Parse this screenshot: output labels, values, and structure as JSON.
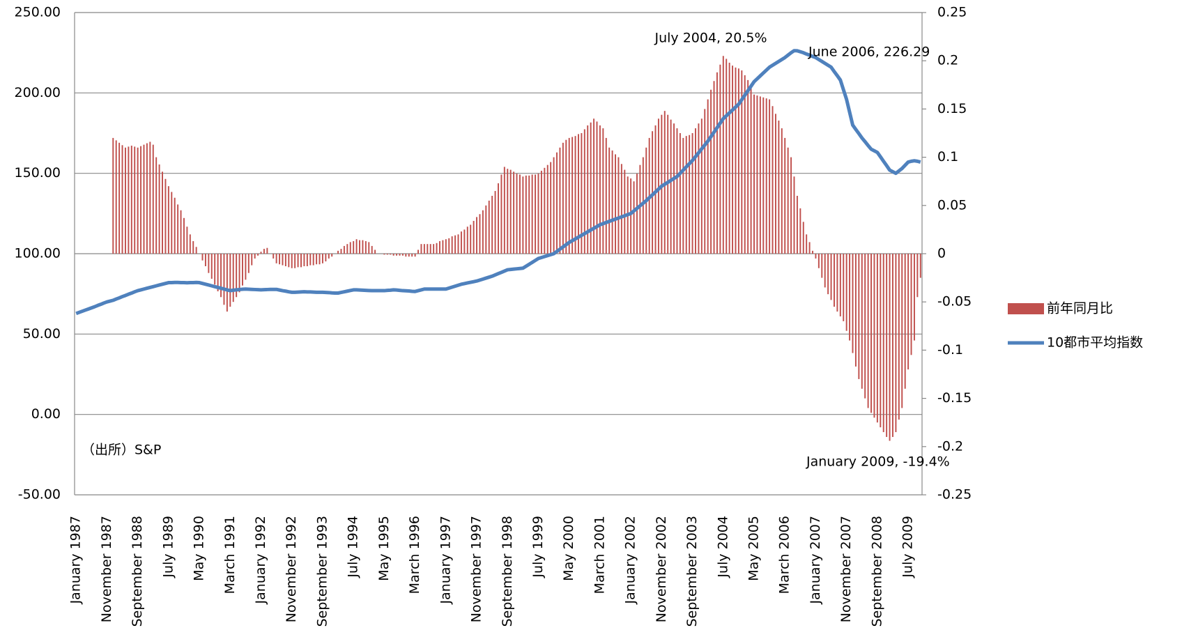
{
  "chart_data": {
    "type": "bar_line",
    "categories": [
      "January 1987",
      null,
      null,
      null,
      null,
      null,
      null,
      null,
      null,
      null,
      "November 1987",
      null,
      null,
      null,
      null,
      null,
      null,
      null,
      null,
      null,
      "September 1988",
      null,
      null,
      null,
      null,
      null,
      null,
      null,
      null,
      null,
      "July 1989",
      null,
      null,
      null,
      null,
      null,
      null,
      null,
      null,
      null,
      "May 1990",
      null,
      null,
      null,
      null,
      null,
      null,
      null,
      null,
      null,
      "March 1991",
      null,
      null,
      null,
      null,
      null,
      null,
      null,
      null,
      null,
      "January 1992",
      null,
      null,
      null,
      null,
      null,
      null,
      null,
      null,
      null,
      "November 1992",
      null,
      null,
      null,
      null,
      null,
      null,
      null,
      null,
      null,
      "September 1993",
      null,
      null,
      null,
      null,
      null,
      null,
      null,
      null,
      null,
      "July 1994",
      null,
      null,
      null,
      null,
      null,
      null,
      null,
      null,
      null,
      "May 1995",
      null,
      null,
      null,
      null,
      null,
      null,
      null,
      null,
      null,
      "March 1996",
      null,
      null,
      null,
      null,
      null,
      null,
      null,
      null,
      null,
      "January 1997",
      null,
      null,
      null,
      null,
      null,
      null,
      null,
      null,
      null,
      "November 1997",
      null,
      null,
      null,
      null,
      null,
      null,
      null,
      null,
      null,
      "September 1998",
      null,
      null,
      null,
      null,
      null,
      null,
      null,
      null,
      null,
      "July 1999",
      null,
      null,
      null,
      null,
      null,
      null,
      null,
      null,
      null,
      "May 2000",
      null,
      null,
      null,
      null,
      null,
      null,
      null,
      null,
      null,
      "March 2001",
      null,
      null,
      null,
      null,
      null,
      null,
      null,
      null,
      null,
      "January 2002",
      null,
      null,
      null,
      null,
      null,
      null,
      null,
      null,
      null,
      "November 2002",
      null,
      null,
      null,
      null,
      null,
      null,
      null,
      null,
      null,
      "September 2003",
      null,
      null,
      null,
      null,
      null,
      null,
      null,
      null,
      null,
      "July 2004",
      null,
      null,
      null,
      null,
      null,
      null,
      null,
      null,
      null,
      "May 2005",
      null,
      null,
      null,
      null,
      null,
      null,
      null,
      null,
      null,
      "March 2006",
      null,
      null,
      null,
      null,
      null,
      null,
      null,
      null,
      null,
      "January 2007",
      null,
      null,
      null,
      null,
      null,
      null,
      null,
      null,
      null,
      "November 2007",
      null,
      null,
      null,
      null,
      null,
      null,
      null,
      null,
      null,
      "September 2008",
      null,
      null,
      null,
      null,
      null,
      null,
      null,
      null,
      null,
      "July 2009",
      null,
      null,
      null,
      null
    ],
    "series": [
      {
        "name": "前年同月比",
        "color": "#c0504d",
        "type": "bar",
        "axis": "y2",
        "values": [
          null,
          null,
          null,
          null,
          null,
          null,
          null,
          null,
          null,
          null,
          null,
          null,
          0.12,
          0.1175,
          0.115,
          0.1125,
          0.11,
          0.111,
          0.112,
          0.111,
          0.11,
          0.1115,
          0.113,
          0.1145,
          0.116,
          0.113,
          0.1,
          0.0925,
          0.085,
          0.0775,
          0.07,
          0.064,
          0.058,
          0.051,
          0.045,
          0.037,
          0.028,
          0.02,
          0.013,
          0.007,
          0.0,
          -0.007,
          -0.013,
          -0.02,
          -0.026,
          -0.032,
          -0.039,
          -0.045,
          -0.053,
          -0.06,
          -0.055,
          -0.05,
          -0.045,
          -0.04,
          -0.033,
          -0.027,
          -0.02,
          -0.012,
          -0.005,
          -0.002,
          0.002,
          0.005,
          0.006,
          0.0,
          -0.005,
          -0.01,
          -0.011,
          -0.012,
          -0.013,
          -0.014,
          -0.015,
          -0.015,
          -0.014,
          -0.014,
          -0.013,
          -0.013,
          -0.012,
          -0.012,
          -0.011,
          -0.011,
          -0.01,
          -0.008,
          -0.005,
          -0.003,
          0.0,
          0.003,
          0.005,
          0.008,
          0.01,
          0.012,
          0.013,
          0.015,
          0.014,
          0.014,
          0.013,
          0.012,
          0.008,
          0.004,
          0.0,
          0.0,
          -0.001,
          -0.001,
          -0.001,
          -0.002,
          -0.002,
          -0.002,
          -0.002,
          -0.003,
          -0.003,
          -0.003,
          -0.003,
          0.004,
          0.01,
          0.01,
          0.01,
          0.01,
          0.01,
          0.011,
          0.013,
          0.014,
          0.015,
          0.016,
          0.018,
          0.019,
          0.02,
          0.023,
          0.025,
          0.028,
          0.03,
          0.034,
          0.038,
          0.041,
          0.045,
          0.05,
          0.055,
          0.06,
          0.065,
          0.073,
          0.082,
          0.09,
          0.088,
          0.087,
          0.085,
          0.083,
          0.082,
          0.08,
          0.081,
          0.081,
          0.082,
          0.082,
          0.083,
          0.086,
          0.089,
          0.092,
          0.095,
          0.1,
          0.105,
          0.11,
          0.115,
          0.118,
          0.12,
          0.121,
          0.122,
          0.124,
          0.125,
          0.129,
          0.133,
          0.136,
          0.14,
          0.137,
          0.133,
          0.13,
          0.12,
          0.11,
          0.107,
          0.103,
          0.1,
          0.093,
          0.087,
          0.08,
          0.078,
          0.075,
          0.083,
          0.092,
          0.1,
          0.11,
          0.12,
          0.127,
          0.133,
          0.14,
          0.144,
          0.148,
          0.144,
          0.139,
          0.135,
          0.13,
          0.125,
          0.12,
          0.122,
          0.123,
          0.125,
          0.13,
          0.135,
          0.14,
          0.15,
          0.16,
          0.17,
          0.179,
          0.188,
          0.196,
          0.205,
          0.202,
          0.198,
          0.195,
          0.193,
          0.192,
          0.19,
          0.185,
          0.18,
          0.172,
          0.165,
          0.164,
          0.163,
          0.162,
          0.161,
          0.16,
          0.153,
          0.145,
          0.138,
          0.13,
          0.12,
          0.11,
          0.1,
          0.08,
          0.06,
          0.047,
          0.033,
          0.02,
          0.012,
          0.003,
          -0.005,
          -0.015,
          -0.025,
          -0.035,
          -0.042,
          -0.048,
          -0.055,
          -0.06,
          -0.065,
          -0.07,
          -0.08,
          -0.09,
          -0.103,
          -0.117,
          -0.13,
          -0.14,
          -0.15,
          -0.16,
          -0.165,
          -0.17,
          -0.175,
          -0.18,
          -0.185,
          -0.19,
          -0.194,
          -0.19,
          -0.185,
          -0.172,
          -0.16,
          -0.14,
          -0.12,
          -0.105,
          -0.09,
          -0.045,
          -0.025
        ]
      },
      {
        "name": "10都市平均指数",
        "color": "#4f81bd",
        "type": "line",
        "axis": "y",
        "values": [
          62.8,
          63.5,
          64.2,
          64.9,
          65.6,
          66.3,
          67.0,
          67.8,
          68.5,
          69.3,
          70.0,
          70.5,
          71.0,
          71.8,
          72.5,
          73.3,
          74.0,
          74.8,
          75.5,
          76.3,
          77.0,
          77.5,
          78.0,
          78.5,
          79.0,
          79.5,
          80.0,
          80.5,
          81.0,
          81.5,
          82.0,
          82.0,
          82.1,
          82.1,
          82.0,
          82.0,
          81.9,
          82.0,
          82.0,
          82.1,
          82.0,
          81.5,
          81.0,
          80.5,
          80.0,
          79.5,
          79.0,
          78.5,
          78.0,
          77.5,
          77.0,
          77.3,
          77.5,
          77.7,
          77.9,
          78.0,
          77.9,
          77.8,
          77.7,
          77.6,
          77.5,
          77.6,
          77.7,
          77.8,
          77.8,
          77.8,
          77.4,
          77.0,
          76.7,
          76.3,
          76.0,
          76.0,
          76.1,
          76.2,
          76.3,
          76.2,
          76.2,
          76.1,
          76.0,
          76.0,
          76.0,
          75.9,
          75.8,
          75.6,
          75.5,
          75.5,
          75.9,
          76.3,
          76.7,
          77.1,
          77.5,
          77.5,
          77.4,
          77.3,
          77.2,
          77.1,
          77.0,
          77.0,
          77.0,
          77.0,
          77.0,
          77.2,
          77.3,
          77.5,
          77.4,
          77.2,
          77.0,
          76.9,
          76.8,
          76.6,
          76.5,
          77.0,
          77.5,
          78.0,
          78.0,
          78.0,
          78.0,
          78.0,
          78.0,
          78.0,
          78.0,
          78.6,
          79.2,
          79.8,
          80.4,
          81.0,
          81.4,
          81.8,
          82.2,
          82.6,
          83.0,
          83.6,
          84.2,
          84.8,
          85.4,
          86.0,
          86.8,
          87.6,
          88.4,
          89.2,
          90.0,
          90.2,
          90.4,
          90.6,
          90.8,
          91.0,
          92.2,
          93.4,
          94.6,
          95.8,
          97.0,
          97.6,
          98.2,
          98.8,
          99.4,
          100.0,
          101.4,
          102.8,
          104.2,
          105.6,
          107.0,
          108.1,
          109.2,
          110.3,
          111.4,
          112.5,
          113.6,
          114.7,
          115.8,
          116.9,
          118.0,
          118.7,
          119.4,
          120.1,
          120.8,
          121.5,
          122.2,
          122.9,
          123.6,
          124.3,
          125.0,
          126.6,
          128.2,
          129.8,
          131.4,
          133.0,
          134.8,
          136.6,
          138.4,
          140.2,
          142.0,
          143.2,
          144.4,
          145.6,
          146.8,
          148.0,
          150.0,
          152.0,
          154.0,
          156.0,
          158.0,
          160.4,
          162.8,
          165.2,
          167.6,
          170.0,
          172.8,
          175.6,
          178.4,
          181.2,
          184.0,
          185.8,
          187.6,
          189.4,
          191.2,
          193.0,
          195.8,
          198.6,
          201.4,
          204.2,
          207.0,
          208.8,
          210.6,
          212.4,
          214.2,
          216.0,
          217.2,
          218.4,
          219.6,
          220.8,
          222.0,
          223.5,
          225.0,
          226.29,
          226.2,
          225.6,
          225.0,
          224.2,
          223.5,
          222.7,
          222.0,
          220.8,
          219.6,
          218.4,
          217.2,
          216.0,
          213.3,
          210.7,
          208.0,
          202.0,
          196.0,
          188.0,
          180.0,
          177.3,
          174.7,
          172.0,
          169.7,
          167.3,
          165.0,
          164.0,
          163.0,
          160.3,
          157.5,
          154.8,
          152.0,
          151.0,
          150.0,
          151.5,
          153.0,
          155.0,
          157.0,
          157.5,
          157.8,
          157.5,
          157.0
        ]
      }
    ],
    "ylim": [
      -50,
      250
    ],
    "yticks": [
      {
        "value": -50,
        "label": "-50.00"
      },
      {
        "value": 0,
        "label": "0.00"
      },
      {
        "value": 50,
        "label": "50.00"
      },
      {
        "value": 100,
        "label": "100.00"
      },
      {
        "value": 150,
        "label": "150.00"
      },
      {
        "value": 200,
        "label": "200.00"
      },
      {
        "value": 250,
        "label": "250.00"
      }
    ],
    "y2lim": [
      -0.25,
      0.25
    ],
    "y2ticks": [
      -0.25,
      -0.2,
      -0.15,
      -0.1,
      -0.05,
      0,
      0.05,
      0.1,
      0.15,
      0.2,
      0.25
    ],
    "grid": true,
    "legend": "right",
    "annotations": [
      "July 2004, 20.5%",
      "June 2006, 226.29",
      "January 2009, -19.4%",
      "（出所）S&P"
    ]
  }
}
